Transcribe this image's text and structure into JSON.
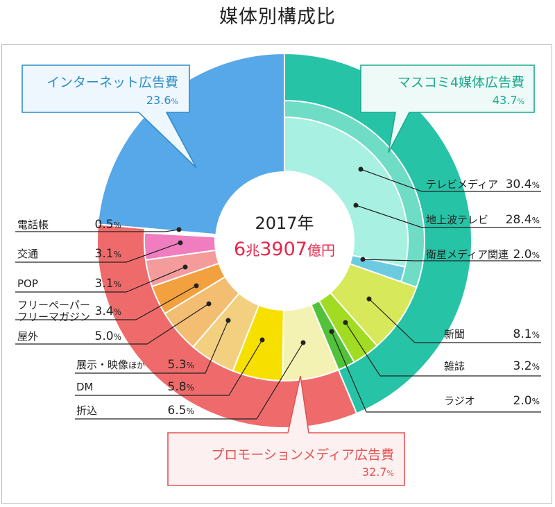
{
  "title": "媒体別構成比",
  "center": {
    "year": "2017年",
    "total_num1": "6",
    "total_unit1": "兆",
    "total_num2": "3907",
    "total_unit2": "億円"
  },
  "colors": {
    "internet": "#57a8e8",
    "masscomi": "#27c3a7",
    "masscomi_tv": "#6fdcc6",
    "masscomi_terrestrial": "#a8f1e2",
    "promo": "#ef6b6b",
    "center_red": "#e8254a"
  },
  "callouts": {
    "internet": {
      "label": "インターネット広告費",
      "value": "23.6%",
      "color": "#2f8cc6",
      "fill": "#eef7fd"
    },
    "masscomi": {
      "label": "マスコミ4媒体広告費",
      "value": "43.7%",
      "color": "#1aa98f",
      "fill": "#eefaf7"
    },
    "promo": {
      "label": "プロモーションメディア広告費",
      "value": "32.7%",
      "color": "#e25454",
      "fill": "#fdf0f0"
    }
  },
  "chart_data": {
    "type": "pie",
    "title": "媒体別構成比",
    "total_label": "6兆3907億円",
    "year": "2017年",
    "outer_ring": [
      {
        "name": "インターネット広告費",
        "value": 23.6
      },
      {
        "name": "マスコミ4媒体広告費",
        "value": 43.7
      },
      {
        "name": "プロモーションメディア広告費",
        "value": 32.7
      }
    ],
    "segments": [
      {
        "name": "インターネット",
        "value": 23.6,
        "group": "internet",
        "color": "#57a8e8",
        "label": ""
      },
      {
        "name": "テレビメディア",
        "value": 30.4,
        "group": "masscomi",
        "color": "#6fdcc6",
        "label": "テレビメディア",
        "sub": [
          {
            "name": "地上波テレビ",
            "value": 28.4,
            "color": "#a8f1e2"
          },
          {
            "name": "衛星メディア関連",
            "value": 2.0,
            "color": "#6ccbe0"
          }
        ]
      },
      {
        "name": "新聞",
        "value": 8.1,
        "group": "masscomi",
        "color": "#d7e85a",
        "label": "新聞"
      },
      {
        "name": "雑誌",
        "value": 3.2,
        "group": "masscomi",
        "color": "#a2dc22",
        "label": "雑誌"
      },
      {
        "name": "ラジオ",
        "value": 2.0,
        "group": "masscomi",
        "color": "#52c23a",
        "label": "ラジオ"
      },
      {
        "name": "折込",
        "value": 6.5,
        "group": "promo",
        "color": "#f4f2b3",
        "label": "折込"
      },
      {
        "name": "DM",
        "value": 5.8,
        "group": "promo",
        "color": "#f7df00",
        "label": "DM"
      },
      {
        "name": "展示・映像ほか",
        "value": 5.3,
        "group": "promo",
        "color": "#f3cf80",
        "label": "展示・映像ほか"
      },
      {
        "name": "屋外",
        "value": 5.0,
        "group": "promo",
        "color": "#f3bd72",
        "label": "屋外"
      },
      {
        "name": "フリーペーパー・フリーマガジン",
        "value": 3.4,
        "group": "promo",
        "color": "#f3a03e",
        "label": "フリーペーパー・フリーマガジン"
      },
      {
        "name": "POP",
        "value": 3.1,
        "group": "promo",
        "color": "#f49c9c",
        "label": "POP"
      },
      {
        "name": "交通",
        "value": 3.1,
        "group": "promo",
        "color": "#ef7dbf",
        "label": "交通"
      },
      {
        "name": "電話帳",
        "value": 0.5,
        "group": "promo",
        "color": "#ffffff",
        "label": "電話帳"
      }
    ],
    "labels": [
      {
        "name": "テレビメディア",
        "value": "30.4%"
      },
      {
        "name": "地上波テレビ",
        "value": "28.4%"
      },
      {
        "name": "衛星メディア関連",
        "value": "2.0%"
      },
      {
        "name": "新聞",
        "value": "8.1%"
      },
      {
        "name": "雑誌",
        "value": "3.2%"
      },
      {
        "name": "ラジオ",
        "value": "2.0%"
      },
      {
        "name": "電話帳",
        "value": "0.5%"
      },
      {
        "name": "交通",
        "value": "3.1%"
      },
      {
        "name": "POP",
        "value": "3.1%"
      },
      {
        "name": "フリーペーパー\nフリーマガジン",
        "value": "3.4%"
      },
      {
        "name": "屋外",
        "value": "5.0%"
      },
      {
        "name": "展示・映像ほか",
        "value": "5.3%"
      },
      {
        "name": "DM",
        "value": "5.8%"
      },
      {
        "name": "折込",
        "value": "6.5%"
      }
    ]
  }
}
